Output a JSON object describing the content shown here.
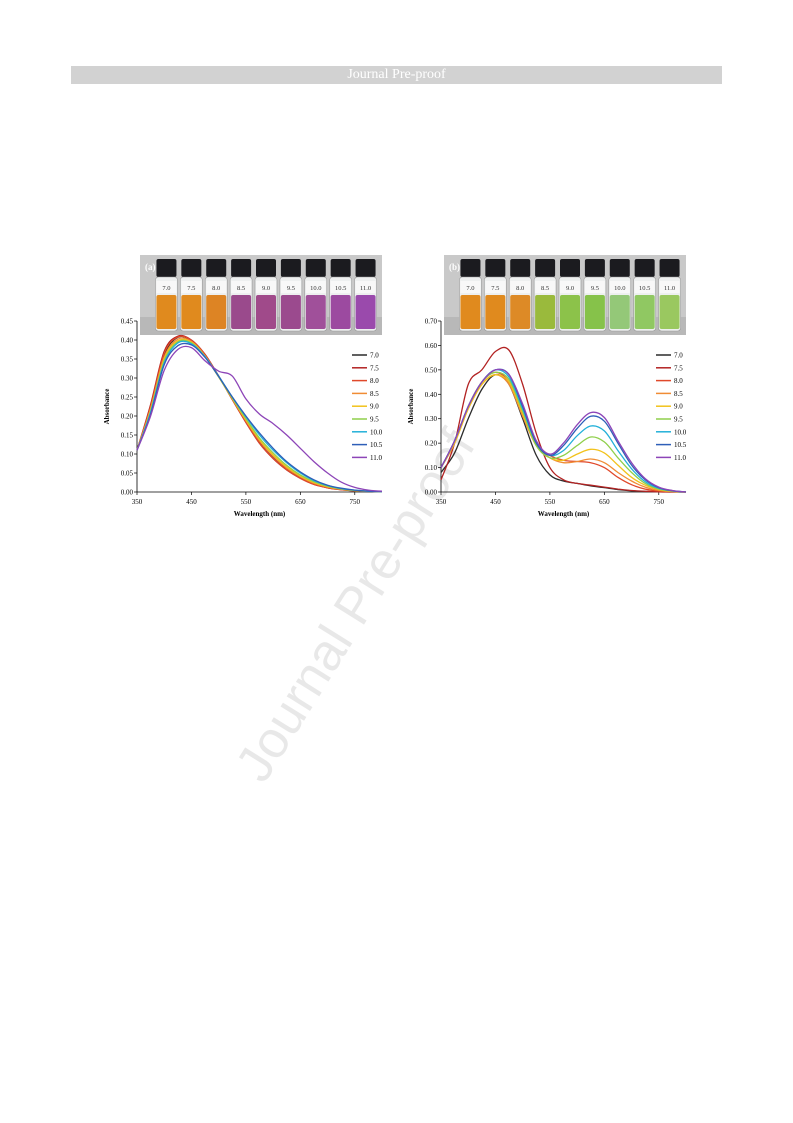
{
  "header": {
    "banner_text": "Journal Pre-proof"
  },
  "watermark": {
    "text": "Journal Pre-proof"
  },
  "colors": {
    "7.0": "#2b2b2b",
    "7.5": "#b22222",
    "8.0": "#e0492b",
    "8.5": "#f08c34",
    "9.0": "#f2c21b",
    "9.5": "#8fcf4a",
    "10.0": "#23b0d8",
    "10.5": "#2e5fb8",
    "11.0": "#8d45b8"
  },
  "chart_data": [
    {
      "type": "line",
      "panel_label": "(a)",
      "photo": {
        "vial_labels": [
          "7.0",
          "7.5",
          "8.0",
          "8.5",
          "9.0",
          "9.5",
          "10.0",
          "10.5",
          "11.0"
        ],
        "vial_colors": [
          "#e08a1e",
          "#e08a1e",
          "#dd8424",
          "#9a4a8c",
          "#a04a8a",
          "#9b4a8e",
          "#a0509a",
          "#9c4aa0",
          "#9a4aac"
        ]
      },
      "xlabel": "Wavelength (nm)",
      "ylabel": "Absorbance",
      "xlim": [
        350,
        800
      ],
      "ylim": [
        0,
        0.45
      ],
      "xticks": [
        350,
        450,
        550,
        650,
        750
      ],
      "yticks": [
        0,
        0.05,
        0.1,
        0.15,
        0.2,
        0.25,
        0.3,
        0.35,
        0.4,
        0.45
      ],
      "ytick_labels": [
        "0.00",
        "0.05",
        "0.10",
        "0.15",
        "0.20",
        "0.25",
        "0.30",
        "0.35",
        "0.40",
        "0.45"
      ],
      "legend": "right",
      "x": [
        350,
        375,
        400,
        425,
        450,
        475,
        500,
        525,
        550,
        575,
        600,
        625,
        650,
        675,
        700,
        725,
        750,
        775,
        800
      ],
      "series": [
        {
          "name": "7.0",
          "values": [
            0.11,
            0.22,
            0.36,
            0.407,
            0.398,
            0.36,
            0.305,
            0.245,
            0.185,
            0.13,
            0.09,
            0.06,
            0.037,
            0.021,
            0.012,
            0.007,
            0.004,
            0.002,
            0.001
          ]
        },
        {
          "name": "7.5",
          "values": [
            0.11,
            0.23,
            0.37,
            0.41,
            0.4,
            0.362,
            0.305,
            0.243,
            0.183,
            0.128,
            0.088,
            0.058,
            0.036,
            0.02,
            0.011,
            0.006,
            0.003,
            0.002,
            0.001
          ]
        },
        {
          "name": "8.0",
          "values": [
            0.11,
            0.225,
            0.365,
            0.408,
            0.399,
            0.361,
            0.304,
            0.244,
            0.184,
            0.129,
            0.089,
            0.059,
            0.036,
            0.02,
            0.011,
            0.006,
            0.003,
            0.002,
            0.001
          ]
        },
        {
          "name": "8.5",
          "values": [
            0.11,
            0.22,
            0.355,
            0.402,
            0.396,
            0.358,
            0.303,
            0.245,
            0.188,
            0.135,
            0.095,
            0.063,
            0.04,
            0.023,
            0.013,
            0.007,
            0.004,
            0.002,
            0.001
          ]
        },
        {
          "name": "9.0",
          "values": [
            0.11,
            0.215,
            0.35,
            0.398,
            0.394,
            0.357,
            0.303,
            0.246,
            0.19,
            0.138,
            0.098,
            0.066,
            0.042,
            0.025,
            0.014,
            0.008,
            0.004,
            0.002,
            0.001
          ]
        },
        {
          "name": "9.5",
          "values": [
            0.11,
            0.212,
            0.345,
            0.395,
            0.392,
            0.356,
            0.303,
            0.247,
            0.193,
            0.142,
            0.103,
            0.07,
            0.045,
            0.027,
            0.015,
            0.008,
            0.004,
            0.002,
            0.001
          ]
        },
        {
          "name": "10.0",
          "values": [
            0.11,
            0.21,
            0.34,
            0.392,
            0.39,
            0.356,
            0.305,
            0.25,
            0.198,
            0.15,
            0.11,
            0.077,
            0.05,
            0.03,
            0.017,
            0.009,
            0.005,
            0.002,
            0.001
          ]
        },
        {
          "name": "10.5",
          "values": [
            0.11,
            0.205,
            0.335,
            0.385,
            0.387,
            0.354,
            0.304,
            0.25,
            0.2,
            0.155,
            0.115,
            0.08,
            0.053,
            0.032,
            0.018,
            0.01,
            0.005,
            0.002,
            0.001
          ]
        },
        {
          "name": "11.0",
          "values": [
            0.11,
            0.2,
            0.32,
            0.375,
            0.38,
            0.345,
            0.318,
            0.305,
            0.245,
            0.205,
            0.18,
            0.15,
            0.115,
            0.08,
            0.05,
            0.026,
            0.012,
            0.005,
            0.002
          ]
        }
      ]
    },
    {
      "type": "line",
      "panel_label": "(b)",
      "photo": {
        "vial_labels": [
          "7.0",
          "7.5",
          "8.0",
          "8.5",
          "9.0",
          "9.5",
          "10.0",
          "10.5",
          "11.0"
        ],
        "vial_colors": [
          "#e08a1e",
          "#e08a1e",
          "#dd8a26",
          "#9aba3c",
          "#8cc24a",
          "#86c24a",
          "#94c878",
          "#90c862",
          "#9ac860"
        ]
      },
      "xlabel": "Wavelength (nm)",
      "ylabel": "Absorbance",
      "xlim": [
        350,
        800
      ],
      "ylim": [
        0,
        0.7
      ],
      "xticks": [
        350,
        450,
        550,
        650,
        750
      ],
      "yticks": [
        0,
        0.1,
        0.2,
        0.3,
        0.4,
        0.5,
        0.6,
        0.7
      ],
      "ytick_labels": [
        "0.00",
        "0.10",
        "0.20",
        "0.30",
        "0.40",
        "0.50",
        "0.60",
        "0.70"
      ],
      "legend": "right",
      "x": [
        350,
        375,
        400,
        425,
        450,
        475,
        500,
        525,
        550,
        575,
        600,
        625,
        650,
        675,
        700,
        725,
        750,
        775,
        800
      ],
      "series": [
        {
          "name": "7.0",
          "values": [
            0.08,
            0.16,
            0.3,
            0.42,
            0.48,
            0.44,
            0.3,
            0.15,
            0.07,
            0.045,
            0.035,
            0.025,
            0.018,
            0.01,
            0.005,
            0.002,
            0.001,
            0.0,
            0.0
          ]
        },
        {
          "name": "7.5",
          "values": [
            0.05,
            0.2,
            0.44,
            0.5,
            0.575,
            0.58,
            0.44,
            0.24,
            0.1,
            0.05,
            0.035,
            0.028,
            0.02,
            0.012,
            0.006,
            0.003,
            0.001,
            0.0,
            0.0
          ]
        },
        {
          "name": "8.0",
          "values": [
            0.1,
            0.2,
            0.35,
            0.45,
            0.49,
            0.45,
            0.32,
            0.2,
            0.15,
            0.13,
            0.125,
            0.12,
            0.1,
            0.06,
            0.03,
            0.012,
            0.004,
            0.001,
            0.0
          ]
        },
        {
          "name": "8.5",
          "values": [
            0.1,
            0.2,
            0.34,
            0.44,
            0.48,
            0.44,
            0.31,
            0.19,
            0.14,
            0.12,
            0.125,
            0.135,
            0.12,
            0.08,
            0.045,
            0.02,
            0.007,
            0.002,
            0.0
          ]
        },
        {
          "name": "9.0",
          "values": [
            0.1,
            0.2,
            0.34,
            0.44,
            0.48,
            0.45,
            0.32,
            0.19,
            0.14,
            0.13,
            0.155,
            0.175,
            0.16,
            0.11,
            0.06,
            0.028,
            0.01,
            0.003,
            0.0
          ]
        },
        {
          "name": "9.5",
          "values": [
            0.1,
            0.21,
            0.35,
            0.45,
            0.49,
            0.46,
            0.33,
            0.19,
            0.14,
            0.15,
            0.19,
            0.225,
            0.205,
            0.14,
            0.08,
            0.035,
            0.012,
            0.004,
            0.0
          ]
        },
        {
          "name": "10.0",
          "values": [
            0.1,
            0.21,
            0.35,
            0.45,
            0.5,
            0.47,
            0.34,
            0.2,
            0.15,
            0.17,
            0.23,
            0.27,
            0.25,
            0.17,
            0.095,
            0.042,
            0.015,
            0.005,
            0.0
          ]
        },
        {
          "name": "10.5",
          "values": [
            0.1,
            0.21,
            0.35,
            0.45,
            0.5,
            0.48,
            0.35,
            0.2,
            0.15,
            0.19,
            0.26,
            0.31,
            0.29,
            0.2,
            0.11,
            0.05,
            0.018,
            0.005,
            0.0
          ]
        },
        {
          "name": "11.0",
          "values": [
            0.1,
            0.21,
            0.35,
            0.45,
            0.5,
            0.48,
            0.36,
            0.21,
            0.155,
            0.2,
            0.275,
            0.325,
            0.305,
            0.21,
            0.12,
            0.055,
            0.02,
            0.006,
            0.0
          ]
        }
      ]
    }
  ]
}
